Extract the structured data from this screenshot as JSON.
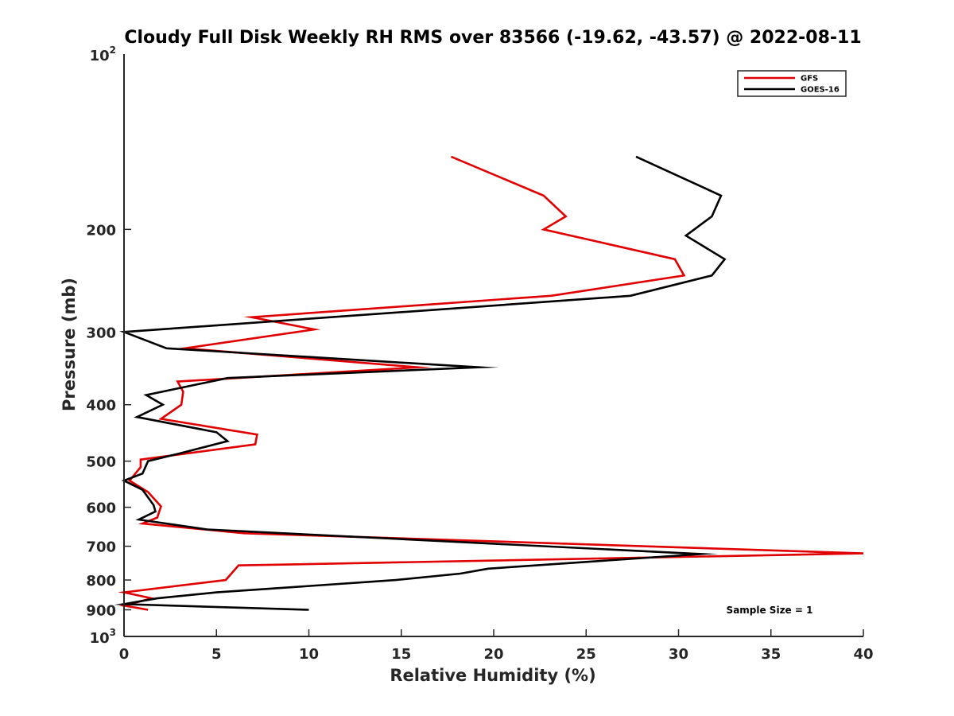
{
  "chart_data": {
    "type": "line",
    "title": "Cloudy Full Disk Weekly RH RMS over 83566 (-19.62, -43.57) @ 2022-08-11",
    "xlabel": "Relative Humidity (%)",
    "ylabel": "Pressure (mb)",
    "xlim": [
      0,
      40
    ],
    "ylim": [
      100,
      1000
    ],
    "y_scale": "log",
    "y_reversed": true,
    "x_ticks": [
      0,
      5,
      10,
      15,
      20,
      25,
      30,
      35,
      40
    ],
    "x_tick_labels": [
      "0",
      "5",
      "10",
      "15",
      "20",
      "25",
      "30",
      "35",
      "40"
    ],
    "y_ticks": [
      200,
      300,
      400,
      500,
      600,
      700,
      800,
      900
    ],
    "y_tick_labels": [
      "200",
      "300",
      "400",
      "500",
      "600",
      "700",
      "800",
      "900"
    ],
    "y_limit_labels": [
      {
        "value": 100,
        "base": "10",
        "exp": "2"
      },
      {
        "value": 1000,
        "base": "10",
        "exp": "3"
      }
    ],
    "legend_position": "top-right",
    "annotation": "Sample Size = 1",
    "series": [
      {
        "name": "GFS",
        "color": "#e00000",
        "x": [
          17.7,
          22.7,
          23.9,
          22.7,
          29.8,
          30.3,
          23.1,
          6.9,
          10.3,
          3.3,
          15.9,
          2.9,
          3.2,
          3.1,
          2.0,
          7.2,
          7.1,
          0.9,
          0.9,
          0.3,
          1.3,
          2.0,
          1.8,
          1.0,
          6.5,
          40.0,
          13.0,
          6.2,
          5.5,
          0.0,
          1.5,
          0.0,
          1.3
        ],
        "y": [
          150,
          175,
          190,
          200,
          225,
          240,
          260,
          283,
          297,
          320,
          345,
          365,
          380,
          400,
          423,
          450,
          468,
          497,
          512,
          540,
          565,
          598,
          625,
          640,
          665,
          720,
          748,
          755,
          800,
          840,
          860,
          885,
          900
        ]
      },
      {
        "name": "GOES-16",
        "color": "#000000",
        "x": [
          27.7,
          32.3,
          31.8,
          30.4,
          32.5,
          31.8,
          27.4,
          0.0,
          2.3,
          19.2,
          5.6,
          1.2,
          2.1,
          0.7,
          5.0,
          5.6,
          3.0,
          1.3,
          1.0,
          0.0,
          1.0,
          1.6,
          1.7,
          0.8,
          4.5,
          31.2,
          19.7,
          18.2,
          14.7,
          5.0,
          1.8,
          0.0,
          10.0
        ],
        "y": [
          150,
          175,
          190,
          205,
          225,
          240,
          260,
          300,
          320,
          345,
          360,
          385,
          400,
          420,
          446,
          462,
          485,
          500,
          525,
          540,
          560,
          595,
          610,
          630,
          655,
          722,
          765,
          780,
          800,
          840,
          860,
          880,
          900
        ]
      }
    ]
  }
}
